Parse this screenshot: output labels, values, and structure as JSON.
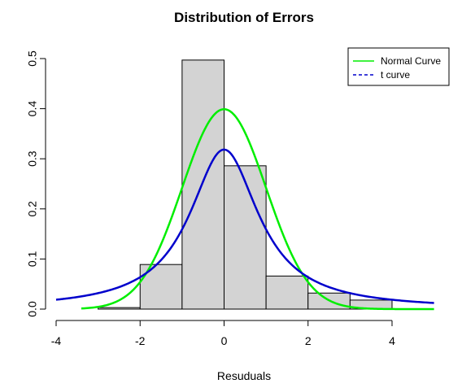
{
  "chart_data": {
    "type": "bar",
    "title": "Distribution of Errors",
    "xlabel": "Resuduals",
    "ylabel": "",
    "xlim": [
      -4,
      5
    ],
    "ylim": [
      0,
      0.5
    ],
    "x_ticks": [
      -4,
      -2,
      0,
      2,
      4
    ],
    "x_tick_labels": [
      "-4",
      "-2",
      "0",
      "2",
      "4"
    ],
    "y_ticks": [
      0.0,
      0.1,
      0.2,
      0.3,
      0.4,
      0.5
    ],
    "y_tick_labels": [
      "0.0",
      "0.1",
      "0.2",
      "0.3",
      "0.4",
      "0.5"
    ],
    "histogram": {
      "bins": [
        {
          "start": -3,
          "end": -2,
          "density": 0.003
        },
        {
          "start": -2,
          "end": -1,
          "density": 0.089
        },
        {
          "start": -1,
          "end": 0,
          "density": 0.497
        },
        {
          "start": 0,
          "end": 1,
          "density": 0.286
        },
        {
          "start": 1,
          "end": 2,
          "density": 0.066
        },
        {
          "start": 2,
          "end": 3,
          "density": 0.032
        },
        {
          "start": 3,
          "end": 4,
          "density": 0.018
        }
      ],
      "fill": "#d3d3d3",
      "stroke": "#000000"
    },
    "series": [
      {
        "name": "Normal Curve",
        "curve": "normal",
        "params": {
          "mean": 0,
          "sd": 1
        },
        "color": "#00ee00",
        "line_style": "solid",
        "x_range": [
          -3.4,
          5
        ]
      },
      {
        "name": "t curve",
        "curve": "t",
        "params": {
          "df": 1
        },
        "color": "#0000cc",
        "line_style": "dashed",
        "x_range": [
          -4,
          5
        ]
      }
    ],
    "legend": {
      "position": "top-right"
    },
    "grid": false
  }
}
